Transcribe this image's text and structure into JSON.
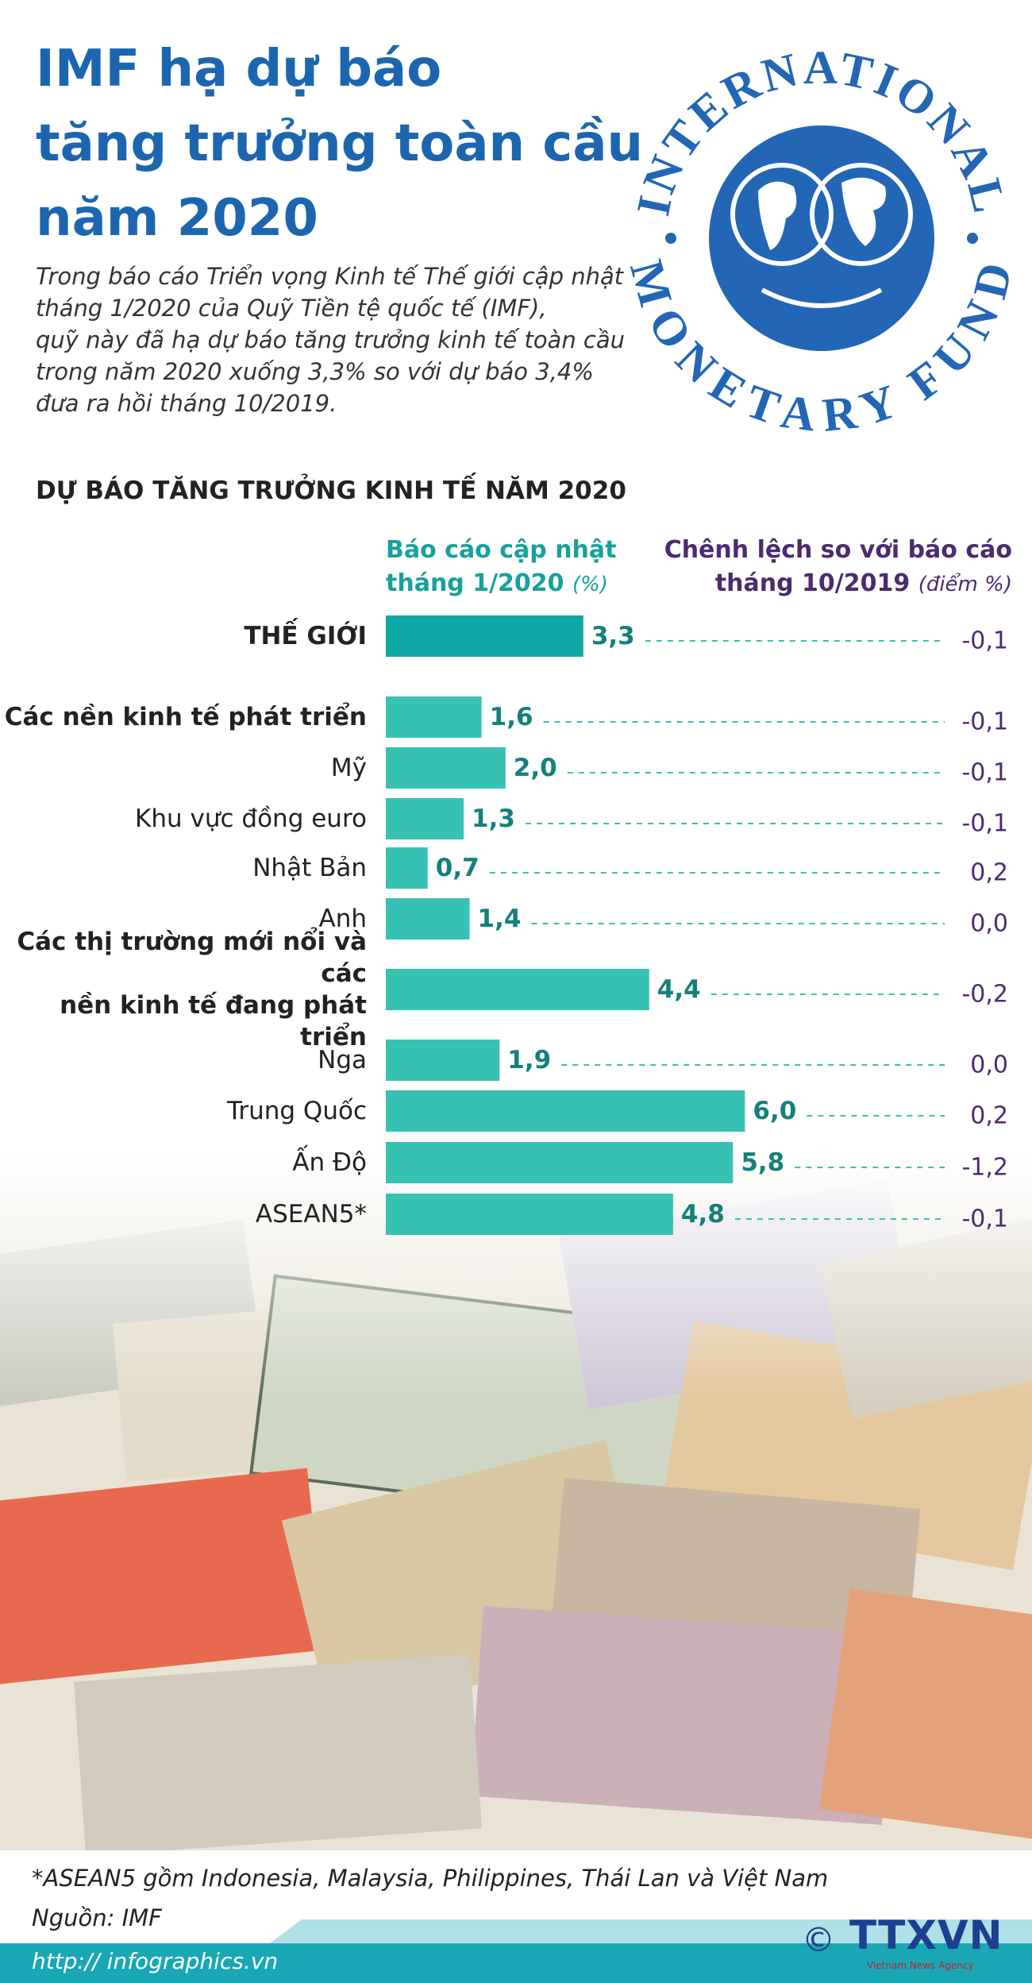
{
  "header": {
    "title": "IMF hạ dự báo\ntăng trưởng toàn cầu\nnăm 2020",
    "intro": "Trong báo cáo Triển vọng Kinh tế Thế giới cập nhật\ntháng 1/2020 của Quỹ Tiền tệ quốc tế (IMF),\nquỹ này đã hạ dự báo tăng trưởng kinh tế toàn cầu\ntrong năm 2020 xuống 3,3% so với dự báo 3,4%\nđưa ra hồi tháng 10/2019."
  },
  "logo": {
    "top": "INTERNATIONAL",
    "bottom": "MONETARY FUND"
  },
  "chart_data": {
    "type": "bar",
    "orientation": "horizontal",
    "title": "DỰ BÁO TĂNG TRƯỞNG KINH TẾ NĂM 2020",
    "value_header": "Báo cáo cập nhật\ntháng 1/2020",
    "value_unit": "(%)",
    "change_header": "Chênh lệch so với báo cáo\ntháng 10/2019",
    "change_unit": "(điểm %)",
    "categories": [
      "THẾ GIỚI",
      "Các nền kinh tế phát triển",
      "Mỹ",
      "Khu vực đồng euro",
      "Nhật Bản",
      "Anh",
      "Các thị trường mới nổi và các\nnền kinh tế đang phát triển",
      "Nga",
      "Trung Quốc",
      "Ấn Độ",
      "ASEAN5*"
    ],
    "values": [
      3.3,
      1.6,
      2.0,
      1.3,
      0.7,
      1.4,
      4.4,
      1.9,
      6.0,
      5.8,
      4.8
    ],
    "value_labels": [
      "3,3",
      "1,6",
      "2,0",
      "1,3",
      "0,7",
      "1,4",
      "4,4",
      "1,9",
      "6,0",
      "5,8",
      "4,8"
    ],
    "changes": [
      -0.1,
      -0.1,
      -0.1,
      -0.1,
      0.2,
      0.0,
      -0.2,
      0.0,
      0.2,
      -1.2,
      -0.1
    ],
    "change_labels": [
      "-0,1",
      "-0,1",
      "-0,1",
      "-0,1",
      "0,2",
      "0,0",
      "-0,2",
      "0,0",
      "0,2",
      "-1,2",
      "-0,1"
    ],
    "colors": [
      "#0fa8a6",
      "#37c1b3",
      "#37c1b3",
      "#37c1b3",
      "#37c1b3",
      "#37c1b3",
      "#37c1b3",
      "#37c1b3",
      "#37c1b3",
      "#37c1b3",
      "#37c1b3"
    ]
  },
  "footer": {
    "note": "*ASEAN5 gồm Indonesia, Malaysia, Philippines, Thái Lan và Việt Nam",
    "source": "Nguồn: IMF",
    "url": "http:// infographics.vn",
    "copyright": "©",
    "agency": "TTXVN",
    "agency_sub": "Vietnam News Agency"
  }
}
